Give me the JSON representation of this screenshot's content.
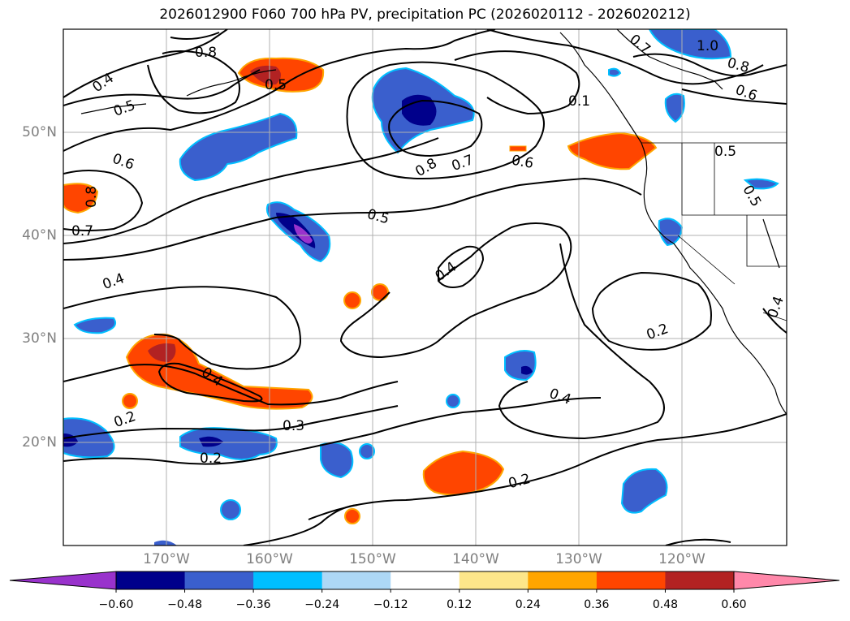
{
  "title": "2026012900 F060 700 hPa PV, precipitation PC (2026020112 - 2026020212)",
  "lat_labels": [
    "50°N",
    "40°N",
    "30°N",
    "20°N"
  ],
  "lon_labels": [
    "170°W",
    "160°W",
    "150°W",
    "140°W",
    "130°W",
    "120°W"
  ],
  "contour_labels": [
    "0.4",
    "0.8",
    "0.5",
    "0.8",
    "0.6",
    "0.8",
    "0.7",
    "0.7",
    "0.6",
    "0.5",
    "0.5",
    "0.4",
    "0.4",
    "0.2",
    "0.4",
    "0.2",
    "0.2",
    "0.4",
    "0.3",
    "0.2",
    "0.1",
    "0.8",
    "0.6",
    "0.5",
    "0.5",
    "0.4",
    "1.0",
    "0.7"
  ],
  "colorbar": {
    "labels": [
      "−0.60",
      "−0.48",
      "−0.36",
      "−0.24",
      "−0.12",
      "0.12",
      "0.24",
      "0.36",
      "0.48",
      "0.60"
    ],
    "colors": [
      "#9932cc",
      "#00008b",
      "#3a5fcd",
      "#00bfff",
      "#add8f6",
      "#ffffff",
      "#fde68a",
      "#ffa500",
      "#ff4500",
      "#b22222",
      "#ff88aa"
    ]
  },
  "fill_colors": {
    "dark_blue": "#00008b",
    "mid_blue": "#3a5fcd",
    "light_blue": "#00bfff",
    "pale_blue": "#add8f6",
    "purple": "#9932cc",
    "orange_red": "#ff4500",
    "dark_red": "#b22222",
    "orange": "#ffa500",
    "yellow": "#fde68a"
  }
}
